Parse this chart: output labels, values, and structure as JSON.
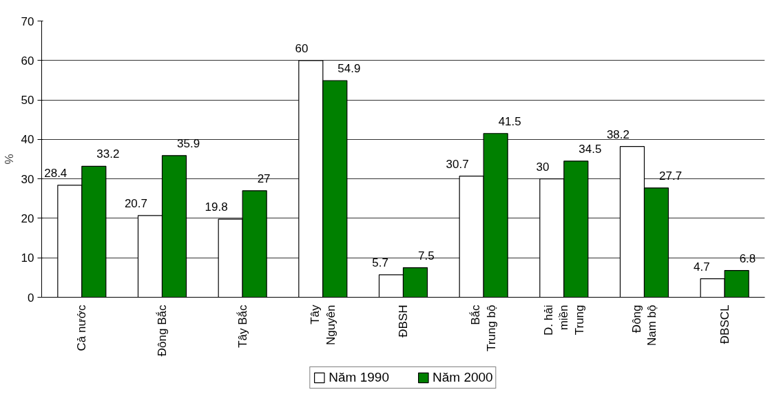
{
  "chart_data": {
    "type": "bar",
    "ylabel": "%",
    "categories": [
      "Cả nước",
      "Đông Bắc",
      "Tây Bắc",
      "Tây\nNguyên",
      "ĐBSH",
      "Bắc\nTrung bộ",
      "D. hải\nmiền\nTrung",
      "Đông\nNam bộ",
      "ĐBSCL"
    ],
    "series": [
      {
        "name": "Năm 1990",
        "color": "#ffffff",
        "values": [
          28.4,
          20.7,
          19.8,
          60,
          5.7,
          30.7,
          30,
          38.2,
          4.7
        ]
      },
      {
        "name": "Năm 2000",
        "color": "#008000",
        "values": [
          33.2,
          35.9,
          27,
          54.9,
          7.5,
          41.5,
          34.5,
          27.7,
          6.8
        ]
      }
    ],
    "ylim": [
      0,
      70
    ],
    "yticks": [
      0,
      10,
      20,
      30,
      40,
      50,
      60,
      70
    ],
    "grid": "y",
    "legend": "bottom",
    "data_labels": true
  }
}
